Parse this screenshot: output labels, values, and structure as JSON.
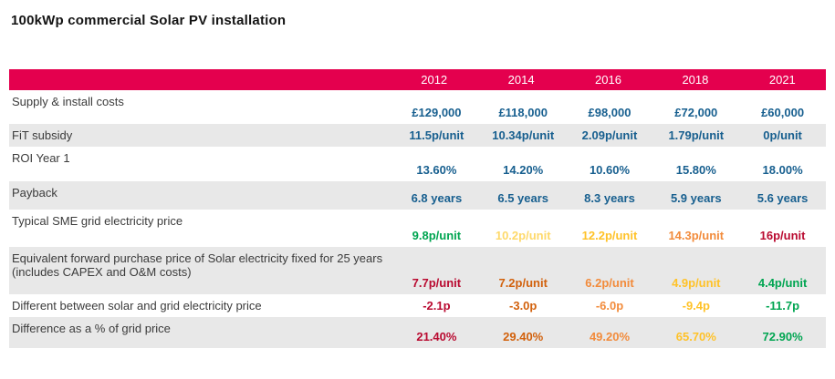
{
  "page_title": "100kWp commercial Solar PV installation",
  "colors": {
    "header_bg": "#E4004E",
    "header_text": "#FFFFFF",
    "shaded_row_bg": "#E8E8E8",
    "label_text": "#3B3B3B",
    "blue": "#175F8F",
    "green": "#00A551",
    "pale_yellow": "#FED96A",
    "gold": "#FFC228",
    "orange": "#F28B3B",
    "burnt_orange": "#D2610C",
    "dark_red": "#B90A30"
  },
  "chart_data": {
    "type": "table",
    "title": "100kWp commercial Solar PV installation",
    "columns": [
      "2012",
      "2014",
      "2016",
      "2018",
      "2021"
    ],
    "rows": [
      {
        "label": "Supply & install costs",
        "values": [
          "£129,000",
          "£118,000",
          "£98,000",
          "£72,000",
          "£60,000"
        ],
        "value_colors": [
          "blue",
          "blue",
          "blue",
          "blue",
          "blue"
        ]
      },
      {
        "label": "FiT subsidy",
        "values": [
          "11.5p/unit",
          "10.34p/unit",
          "2.09p/unit",
          "1.79p/unit",
          "0p/unit"
        ],
        "value_colors": [
          "blue",
          "blue",
          "blue",
          "blue",
          "blue"
        ]
      },
      {
        "label": "ROI Year 1",
        "values": [
          "13.60%",
          "14.20%",
          "10.60%",
          "15.80%",
          "18.00%"
        ],
        "value_colors": [
          "blue",
          "blue",
          "blue",
          "blue",
          "blue"
        ]
      },
      {
        "label": "Payback",
        "values": [
          "6.8 years",
          "6.5 years",
          "8.3 years",
          "5.9 years",
          "5.6 years"
        ],
        "value_colors": [
          "blue",
          "blue",
          "blue",
          "blue",
          "blue"
        ]
      },
      {
        "label": "Typical SME grid electricity price",
        "values": [
          "9.8p/unit",
          "10.2p/unit",
          "12.2p/unit",
          "14.3p/unit",
          "16p/unit"
        ],
        "value_colors": [
          "green",
          "pale_yellow",
          "gold",
          "orange",
          "dark_red"
        ]
      },
      {
        "label": "Equivalent forward purchase price of Solar electricity fixed for 25 years (includes CAPEX and O&M costs)",
        "values": [
          "7.7p/unit",
          "7.2p/unit",
          "6.2p/unit",
          "4.9p/unit",
          "4.4p/unit"
        ],
        "value_colors": [
          "dark_red",
          "burnt_orange",
          "orange",
          "gold",
          "green"
        ]
      },
      {
        "label": "Different between solar and grid electricity price",
        "values": [
          "-2.1p",
          "-3.0p",
          "-6.0p",
          "-9.4p",
          "-11.7p"
        ],
        "value_colors": [
          "dark_red",
          "burnt_orange",
          "orange",
          "gold",
          "green"
        ]
      },
      {
        "label": "Difference as a % of grid price",
        "values": [
          "21.40%",
          "29.40%",
          "49.20%",
          "65.70%",
          "72.90%"
        ],
        "value_colors": [
          "dark_red",
          "burnt_orange",
          "orange",
          "gold",
          "green"
        ]
      }
    ]
  }
}
